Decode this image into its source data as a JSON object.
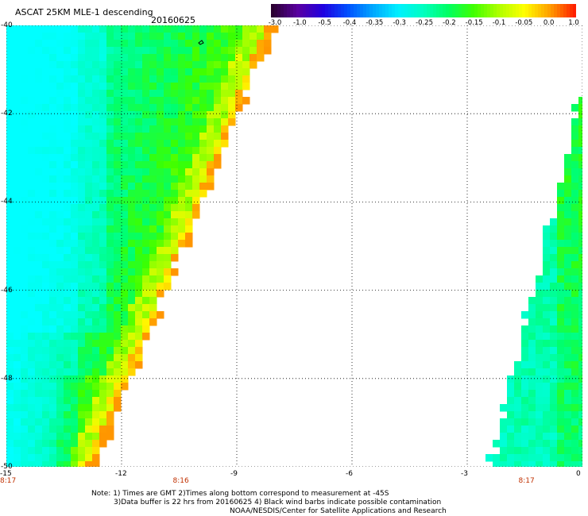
{
  "header": {
    "title": "ASCAT 25KM MLE-1 descending",
    "date": "20160625"
  },
  "colorbar": {
    "labels": [
      "-3.0",
      "-1.0",
      "-0.5",
      "-0.4",
      "-0.35",
      "-0.3",
      "-0.25",
      "-0.2",
      "-0.15",
      "-0.1",
      "-0.05",
      "0.0",
      "1.0"
    ],
    "colors": [
      "#2a0030",
      "#5a00a0",
      "#3000d8",
      "#0040ff",
      "#0090ff",
      "#00d8ff",
      "#00ffd0",
      "#00ff80",
      "#30ff00",
      "#a0ff00",
      "#f0ff00",
      "#ffb000",
      "#ff3000"
    ]
  },
  "map": {
    "lon_ticks": [
      "-15",
      "-12",
      "-9",
      "-6",
      "-3",
      "0"
    ],
    "lat_ticks": [
      "-40",
      "-42",
      "-44",
      "-46",
      "-48",
      "-50"
    ],
    "lon_range": [
      -15,
      0
    ],
    "lat_range": [
      -50,
      -40
    ],
    "grid": true,
    "time_labels": [
      "8:17",
      "8:16",
      "8:17"
    ],
    "time_label_lons": [
      -15,
      -10.5,
      -1.5
    ]
  },
  "notes": [
    "Note: 1) Times are GMT 2)Times along bottom correspond to measurement at -45S",
    "3)Data buffer is 22 hrs from 20160625 4) Black wind barbs indicate possible contamination",
    "NOAA/NESDIS/Center for Satellite Applications and Research"
  ]
}
